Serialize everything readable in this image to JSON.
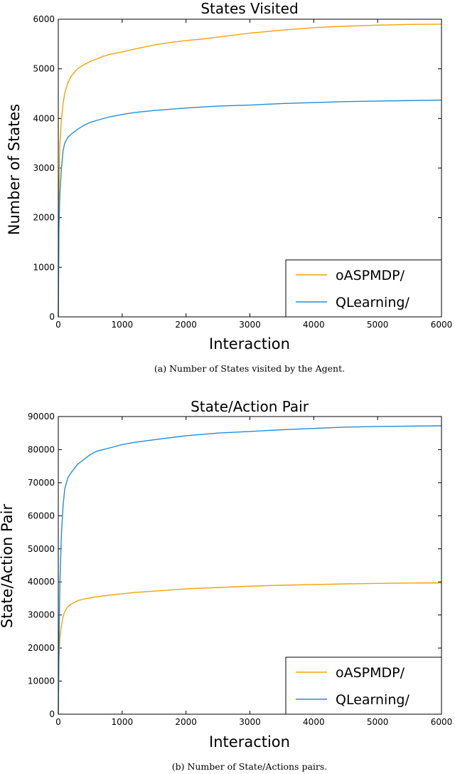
{
  "chart_data": [
    {
      "type": "line",
      "title": "States Visited",
      "xlabel": "Interaction",
      "ylabel": "Number of States",
      "xlim": [
        0,
        6000
      ],
      "ylim": [
        0,
        6000
      ],
      "xticks": [
        0,
        1000,
        2000,
        3000,
        4000,
        5000,
        6000
      ],
      "yticks": [
        0,
        1000,
        2000,
        3000,
        4000,
        5000,
        6000
      ],
      "grid": false,
      "legend_position": "bottom-right",
      "caption": "(a) Number of States visited by the Agent.",
      "series": [
        {
          "name": "oASPMDP/",
          "color": "#f0a30a",
          "x": [
            0,
            10,
            25,
            50,
            75,
            100,
            150,
            200,
            300,
            400,
            500,
            600,
            700,
            800,
            1000,
            1200,
            1500,
            1750,
            2000,
            2250,
            2500,
            3000,
            3500,
            4000,
            4500,
            5000,
            5500,
            6000
          ],
          "y": [
            0,
            2500,
            3500,
            4000,
            4300,
            4500,
            4720,
            4850,
            5000,
            5080,
            5150,
            5200,
            5250,
            5290,
            5340,
            5400,
            5480,
            5530,
            5570,
            5600,
            5640,
            5720,
            5780,
            5830,
            5860,
            5880,
            5895,
            5900
          ]
        },
        {
          "name": "QLearning/",
          "color": "#1f8fd6",
          "x": [
            0,
            10,
            25,
            50,
            75,
            100,
            150,
            200,
            300,
            400,
            500,
            600,
            800,
            1000,
            1200,
            1500,
            2000,
            2500,
            3000,
            3500,
            4000,
            4500,
            5000,
            5500,
            6000
          ],
          "y": [
            0,
            1800,
            2500,
            3000,
            3350,
            3500,
            3620,
            3680,
            3780,
            3860,
            3920,
            3960,
            4030,
            4080,
            4120,
            4160,
            4210,
            4250,
            4270,
            4300,
            4320,
            4340,
            4350,
            4360,
            4370
          ]
        }
      ]
    },
    {
      "type": "line",
      "title": "State/Action Pair",
      "xlabel": "Interaction",
      "ylabel": "State/Action Pair",
      "xlim": [
        0,
        6000
      ],
      "ylim": [
        0,
        90000
      ],
      "xticks": [
        0,
        1000,
        2000,
        3000,
        4000,
        5000,
        6000
      ],
      "yticks": [
        0,
        10000,
        20000,
        30000,
        40000,
        50000,
        60000,
        70000,
        80000,
        90000
      ],
      "grid": false,
      "legend_position": "bottom-right",
      "caption": "(b) Number of State/Actions pairs.",
      "series": [
        {
          "name": "oASPMDP/",
          "color": "#f0a30a",
          "x": [
            0,
            10,
            25,
            50,
            75,
            100,
            150,
            200,
            300,
            400,
            500,
            600,
            800,
            1000,
            1200,
            1500,
            2000,
            2500,
            3000,
            3500,
            4000,
            4500,
            5000,
            5500,
            6000
          ],
          "y": [
            0,
            17000,
            23000,
            27000,
            29500,
            31000,
            32500,
            33300,
            34300,
            34800,
            35200,
            35500,
            36000,
            36400,
            36800,
            37200,
            37900,
            38300,
            38700,
            39000,
            39200,
            39400,
            39550,
            39650,
            39700
          ]
        },
        {
          "name": "QLearning/",
          "color": "#1f8fd6",
          "x": [
            0,
            10,
            25,
            50,
            75,
            100,
            150,
            200,
            300,
            400,
            500,
            600,
            700,
            800,
            1000,
            1200,
            1500,
            2000,
            2500,
            3000,
            3500,
            4000,
            4500,
            5000,
            5500,
            6000
          ],
          "y": [
            0,
            20000,
            40000,
            55000,
            63000,
            68000,
            71500,
            73000,
            75500,
            77000,
            78500,
            79500,
            80000,
            80500,
            81500,
            82200,
            83000,
            84200,
            85000,
            85500,
            86000,
            86400,
            86800,
            87000,
            87100,
            87200
          ]
        }
      ]
    }
  ]
}
